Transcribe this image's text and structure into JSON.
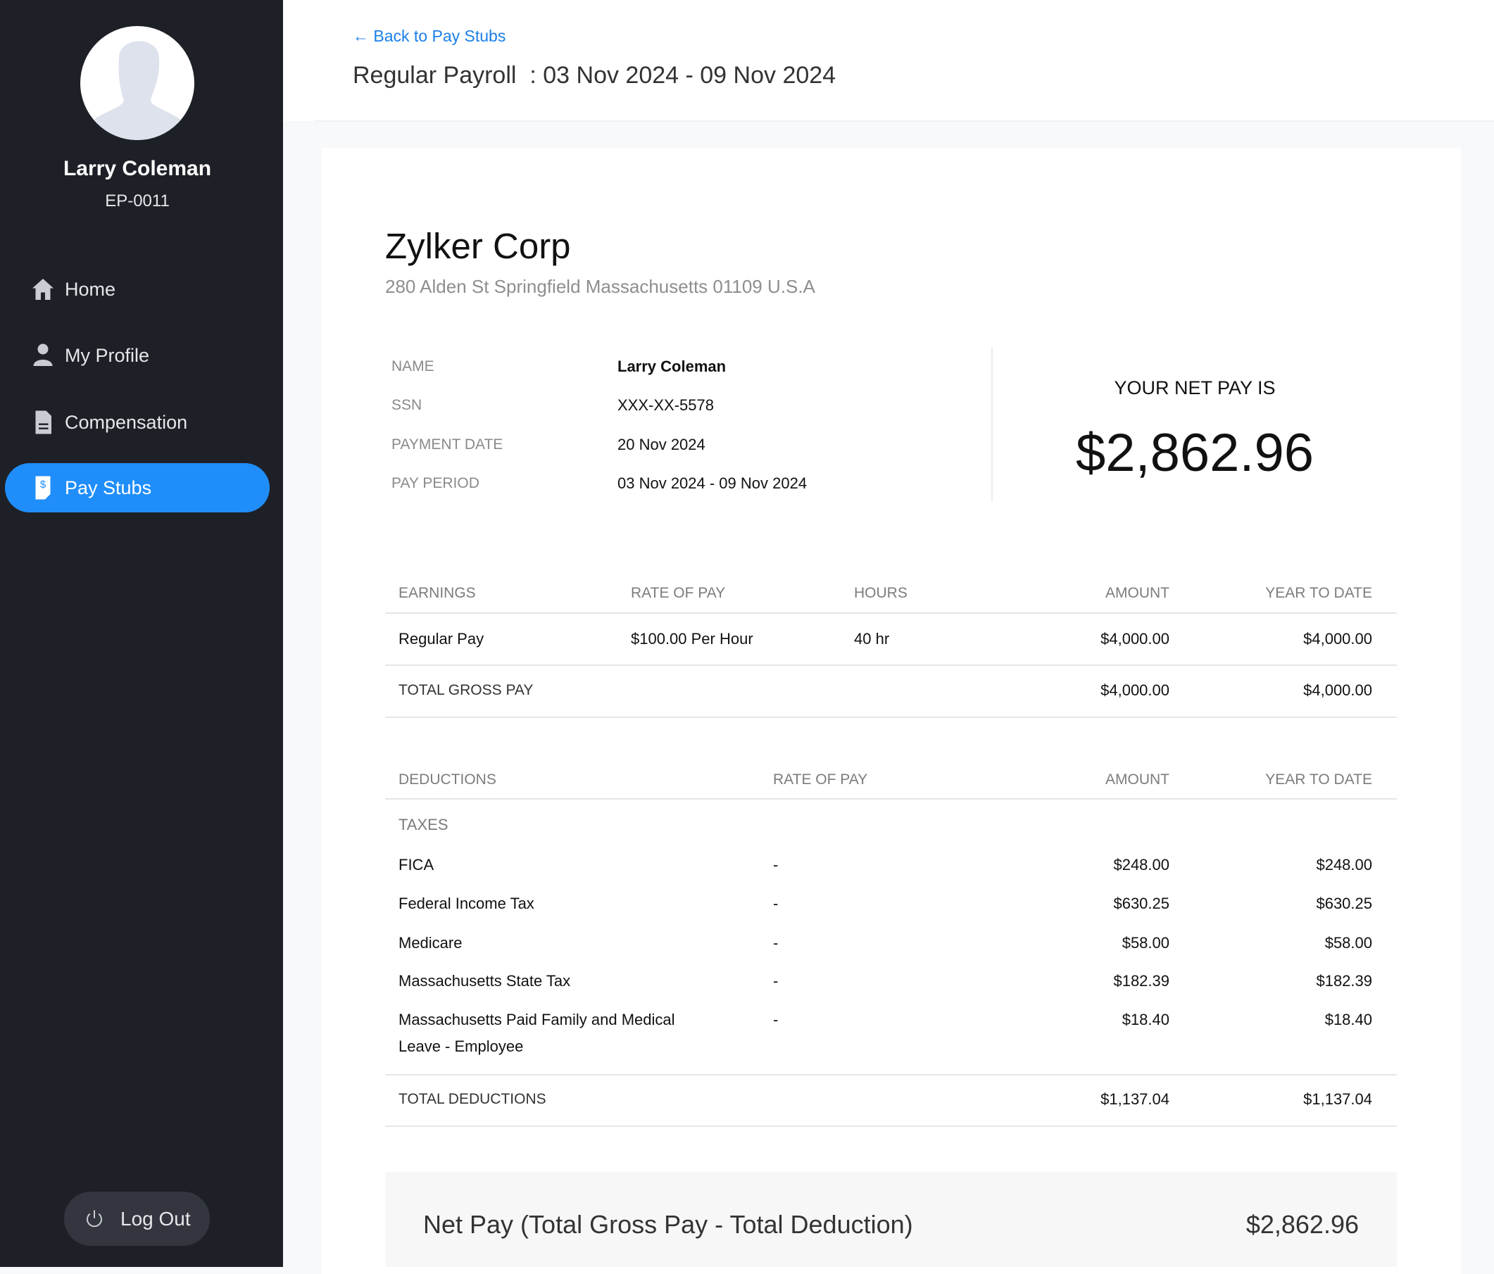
{
  "sidebar": {
    "user_name": "Larry Coleman",
    "employee_id": "EP-0011",
    "items": [
      {
        "label": "Home",
        "icon": "home-icon"
      },
      {
        "label": "My Profile",
        "icon": "user-icon"
      },
      {
        "label": "Compensation",
        "icon": "document-icon"
      },
      {
        "label": "Pay Stubs",
        "icon": "pay-stub-icon",
        "active": true
      }
    ],
    "logout_label": "Log Out"
  },
  "header": {
    "back_link": "Back to Pay Stubs",
    "title_prefix": "Regular Payroll",
    "title_period": ": 03 Nov 2024 - 09 Nov 2024"
  },
  "company": {
    "name": "Zylker Corp",
    "address": "280 Alden St Springfield Massachusetts 01109 U.S.A"
  },
  "employee_info": [
    {
      "label": "NAME",
      "value": "Larry Coleman"
    },
    {
      "label": "SSN",
      "value": "XXX-XX-5578"
    },
    {
      "label": "PAYMENT DATE",
      "value": "20 Nov 2024"
    },
    {
      "label": "PAY PERIOD",
      "value": "03 Nov 2024 - 09 Nov 2024"
    }
  ],
  "net_pay_summary": {
    "label": "YOUR NET PAY IS",
    "amount": "$2,862.96"
  },
  "earnings": {
    "headers": [
      "EARNINGS",
      "RATE OF PAY",
      "HOURS",
      "AMOUNT",
      "YEAR TO DATE"
    ],
    "rows": [
      {
        "name": "Regular Pay",
        "rate": "$100.00 Per Hour",
        "hours": "40 hr",
        "amount": "$4,000.00",
        "ytd": "$4,000.00"
      }
    ],
    "total": {
      "label": "TOTAL GROSS PAY",
      "amount": "$4,000.00",
      "ytd": "$4,000.00"
    }
  },
  "deductions": {
    "headers": [
      "DEDUCTIONS",
      "RATE OF PAY",
      "AMOUNT",
      "YEAR TO DATE"
    ],
    "group": "TAXES",
    "rows": [
      {
        "name": "FICA",
        "rate": "-",
        "amount": "$248.00",
        "ytd": "$248.00"
      },
      {
        "name": "Federal Income Tax",
        "rate": "-",
        "amount": "$630.25",
        "ytd": "$630.25"
      },
      {
        "name": "Medicare",
        "rate": "-",
        "amount": "$58.00",
        "ytd": "$58.00"
      },
      {
        "name": "Massachusetts State Tax",
        "rate": "-",
        "amount": "$182.39",
        "ytd": "$182.39"
      },
      {
        "name": "Massachusetts Paid Family and Medical",
        "name_line2": "Leave - Employee",
        "rate": "-",
        "amount": "$18.40",
        "ytd": "$18.40"
      }
    ],
    "total": {
      "label": "TOTAL DEDUCTIONS",
      "amount": "$1,137.04",
      "ytd": "$1,137.04"
    }
  },
  "net_pay": {
    "label": "Net Pay (Total Gross Pay - Total Deduction)",
    "amount": "$2,862.96"
  },
  "colors": {
    "accent": "#1f8efa",
    "sidebar_bg": "#1e2027",
    "link": "#1a7fe8"
  }
}
